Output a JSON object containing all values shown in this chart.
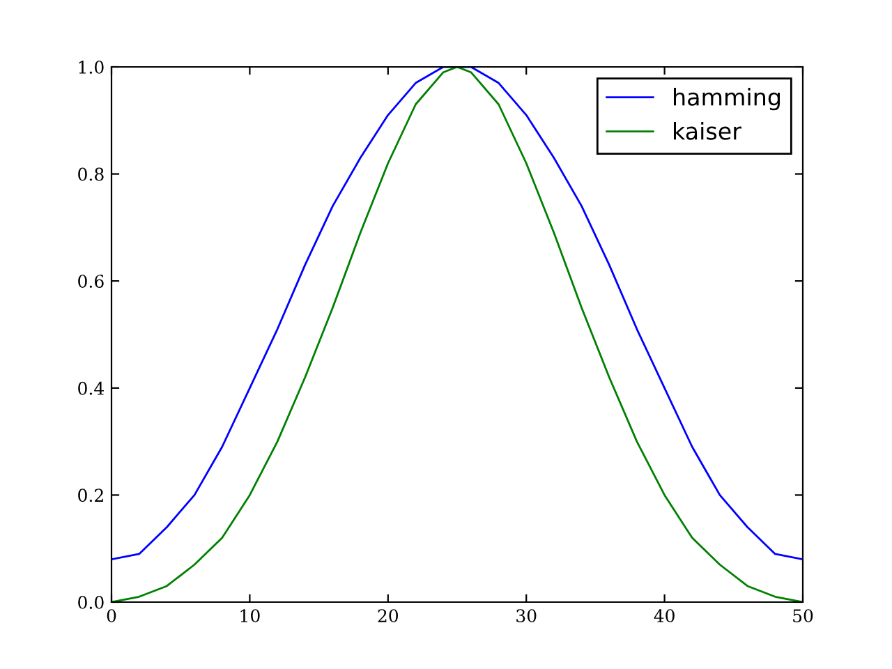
{
  "chart_data": {
    "type": "line",
    "x": [
      0,
      2,
      4,
      6,
      8,
      10,
      12,
      14,
      16,
      18,
      20,
      22,
      24,
      25,
      26,
      28,
      30,
      32,
      34,
      36,
      38,
      40,
      42,
      44,
      46,
      48,
      50
    ],
    "series": [
      {
        "name": "hamming",
        "color": "#0000ff",
        "x": [
          0,
          2,
          4,
          6,
          8,
          10,
          12,
          14,
          16,
          18,
          20,
          22,
          24,
          26,
          28,
          30,
          32,
          34,
          36,
          38,
          40,
          42,
          44,
          46,
          48,
          50
        ],
        "values": [
          0.08,
          0.09,
          0.14,
          0.2,
          0.29,
          0.4,
          0.51,
          0.63,
          0.74,
          0.83,
          0.91,
          0.97,
          1.0,
          1.0,
          0.97,
          0.91,
          0.83,
          0.74,
          0.63,
          0.51,
          0.4,
          0.29,
          0.2,
          0.14,
          0.09,
          0.08
        ]
      },
      {
        "name": "kaiser",
        "color": "#008000",
        "values": [
          0.0,
          0.01,
          0.03,
          0.07,
          0.12,
          0.2,
          0.3,
          0.42,
          0.55,
          0.69,
          0.82,
          0.93,
          0.99,
          1.0,
          0.99,
          0.93,
          0.82,
          0.69,
          0.55,
          0.42,
          0.3,
          0.2,
          0.12,
          0.07,
          0.03,
          0.01,
          0.0
        ]
      }
    ],
    "xlim": [
      0,
      50
    ],
    "xticks": [
      0,
      10,
      20,
      30,
      40,
      50
    ],
    "ylim": [
      0,
      1.0
    ],
    "yticks": [
      {
        "value": 0,
        "label": "0.0"
      },
      {
        "value": 0.2,
        "label": "0.2"
      },
      {
        "value": 0.4,
        "label": "0.4"
      },
      {
        "value": 0.6,
        "label": "0.6"
      },
      {
        "value": 0.8,
        "label": "0.8"
      },
      {
        "value": 1.0,
        "label": "1.0"
      }
    ],
    "legend": "top right",
    "grid": false,
    "marker": "none",
    "line_style": "solid"
  }
}
